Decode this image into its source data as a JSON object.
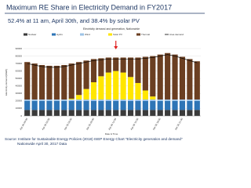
{
  "chart_data": {
    "type": "bar",
    "stacked": true,
    "title": "Maximum RE Share in Electricity Demand in FY2017",
    "subtitle": "52.4% at 11 am, April 30th, and 38.4% by solar PV",
    "chart_title": "Electricity demand and generation, Nationwide",
    "y_label": "Electricity demand [MWh]",
    "x_label": "Date & Time",
    "source": "Source: Institute for Sustainable Energy Policies (2018) ISEP Energy Chart \"Electricity generation and demand\"",
    "source_2": "Nationwide April 30, 2017 Data",
    "categories": [
      "Apr 30 00:00",
      null,
      null,
      "Apr 30 03:00",
      null,
      null,
      "Apr 30 06:00",
      null,
      null,
      "Apr 30 09:00",
      null,
      null,
      "Apr 30 12:00",
      null,
      null,
      "Apr 30 15:00",
      null,
      null,
      "Apr 30 18:00",
      null,
      null,
      "Apr 30 21:00",
      null,
      null
    ],
    "series": [
      {
        "name": "Nuclear",
        "color": "#3a3a3a",
        "values": [
          8000,
          8000,
          8000,
          8000,
          8000,
          8000,
          8000,
          8000,
          8000,
          8000,
          8000,
          8000,
          8000,
          8000,
          8000,
          8000,
          8000,
          8000,
          8000,
          8000,
          8000,
          8000,
          8000,
          8000
        ]
      },
      {
        "name": "Hydro",
        "color": "#2e75b6",
        "values": [
          12000,
          12000,
          12000,
          12000,
          12000,
          12000,
          12000,
          12000,
          12000,
          12000,
          12000,
          12000,
          12000,
          12000,
          12000,
          12000,
          12000,
          12000,
          12000,
          12000,
          12000,
          12000,
          12000,
          12000
        ]
      },
      {
        "name": "Wind",
        "color": "#9dc3e6",
        "values": [
          2000,
          2000,
          2000,
          2000,
          2000,
          2000,
          2000,
          2000,
          2000,
          2000,
          2000,
          2000,
          2000,
          2000,
          2000,
          2000,
          2000,
          2000,
          2000,
          2000,
          2000,
          2000,
          2000,
          2000
        ]
      },
      {
        "name": "Solar PV",
        "color": "#ffe600",
        "values": [
          0,
          0,
          0,
          0,
          0,
          0,
          1000,
          6000,
          14000,
          23000,
          31000,
          36000,
          38000,
          36000,
          30000,
          22000,
          12000,
          4000,
          0,
          0,
          0,
          0,
          0,
          0
        ]
      },
      {
        "name": "Thermal",
        "color": "#6b3f22",
        "values": [
          50000,
          48000,
          46000,
          45000,
          45000,
          46000,
          47000,
          44000,
          38000,
          31000,
          24000,
          20000,
          18000,
          20000,
          26000,
          34000,
          45000,
          54000,
          60000,
          62000,
          60000,
          57000,
          54000,
          51000
        ]
      },
      {
        "name": "Area demand",
        "color": "#000000",
        "kind": "line",
        "values": [
          70000,
          68000,
          66000,
          65000,
          65000,
          66000,
          68000,
          70000,
          72000,
          74000,
          75000,
          76000,
          76000,
          76000,
          76000,
          76000,
          77000,
          78000,
          80000,
          82000,
          80000,
          77000,
          74000,
          71000
        ]
      }
    ],
    "highlight_index": 12,
    "highlight_color": "#e02020",
    "ylim": [
      0,
      90000
    ],
    "yticks": [
      0,
      10000,
      20000,
      30000,
      40000,
      50000,
      60000,
      70000,
      80000,
      90000
    ],
    "grid": true
  }
}
